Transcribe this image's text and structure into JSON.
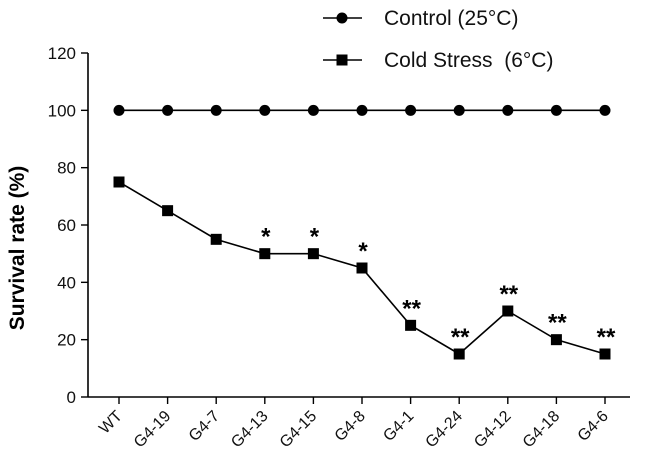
{
  "chart_data": {
    "type": "line",
    "title": "",
    "xlabel": "",
    "ylabel": "Survival rate (%)",
    "ylim": [
      0,
      120
    ],
    "yticks": [
      0,
      20,
      40,
      60,
      80,
      100,
      120
    ],
    "grid": false,
    "legend_position": "top-right",
    "categories": [
      "WT",
      "G4-19",
      "G4-7",
      "G4-13",
      "G4-15",
      "G4-8",
      "G4-1",
      "G4-24",
      "G4-12",
      "G4-18",
      "G4-6"
    ],
    "series": [
      {
        "name": "Control (25°C)",
        "marker": "circle",
        "color": "#000000",
        "values": [
          100,
          100,
          100,
          100,
          100,
          100,
          100,
          100,
          100,
          100,
          100
        ]
      },
      {
        "name": "Cold Stress  (6°C)",
        "marker": "square",
        "color": "#000000",
        "values": [
          75,
          65,
          55,
          50,
          50,
          45,
          25,
          15,
          30,
          20,
          15
        ]
      }
    ],
    "annotations": [
      "",
      "",
      "",
      "*",
      "*",
      "*",
      "**",
      "**",
      "**",
      "**",
      "**"
    ]
  }
}
